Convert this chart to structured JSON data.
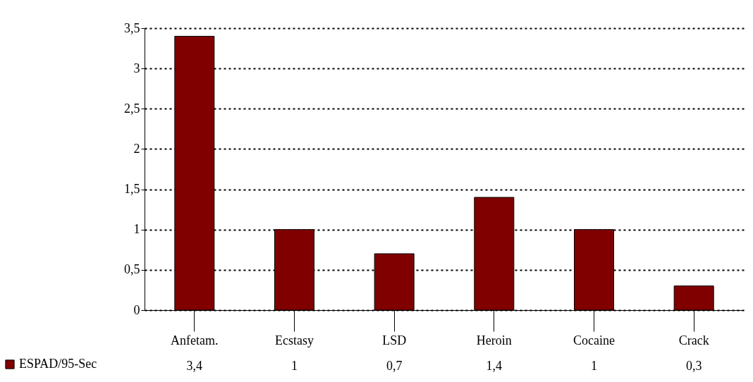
{
  "chart_data": {
    "type": "bar",
    "categories": [
      "Anfetam.",
      "Ecstasy",
      "LSD",
      "Heroin",
      "Cocaine",
      "Crack"
    ],
    "series": [
      {
        "name": "ESPAD/95-Sec",
        "color": "#800000",
        "values": [
          3.4,
          1,
          0.7,
          1.4,
          1,
          0.3
        ],
        "value_labels": [
          "3,4",
          "1",
          "0,7",
          "1,4",
          "1",
          "0,3"
        ]
      }
    ],
    "ylim": [
      0,
      3.5
    ],
    "yticks": [
      0,
      {
        "value": 0.5,
        "label": "0,5"
      },
      1,
      {
        "value": 1.5,
        "label": "1,5"
      },
      2,
      {
        "value": 2.5,
        "label": "2,5"
      },
      3,
      {
        "value": 3.5,
        "label": "3,5"
      }
    ],
    "grid": "y",
    "legend": "bottom left"
  }
}
